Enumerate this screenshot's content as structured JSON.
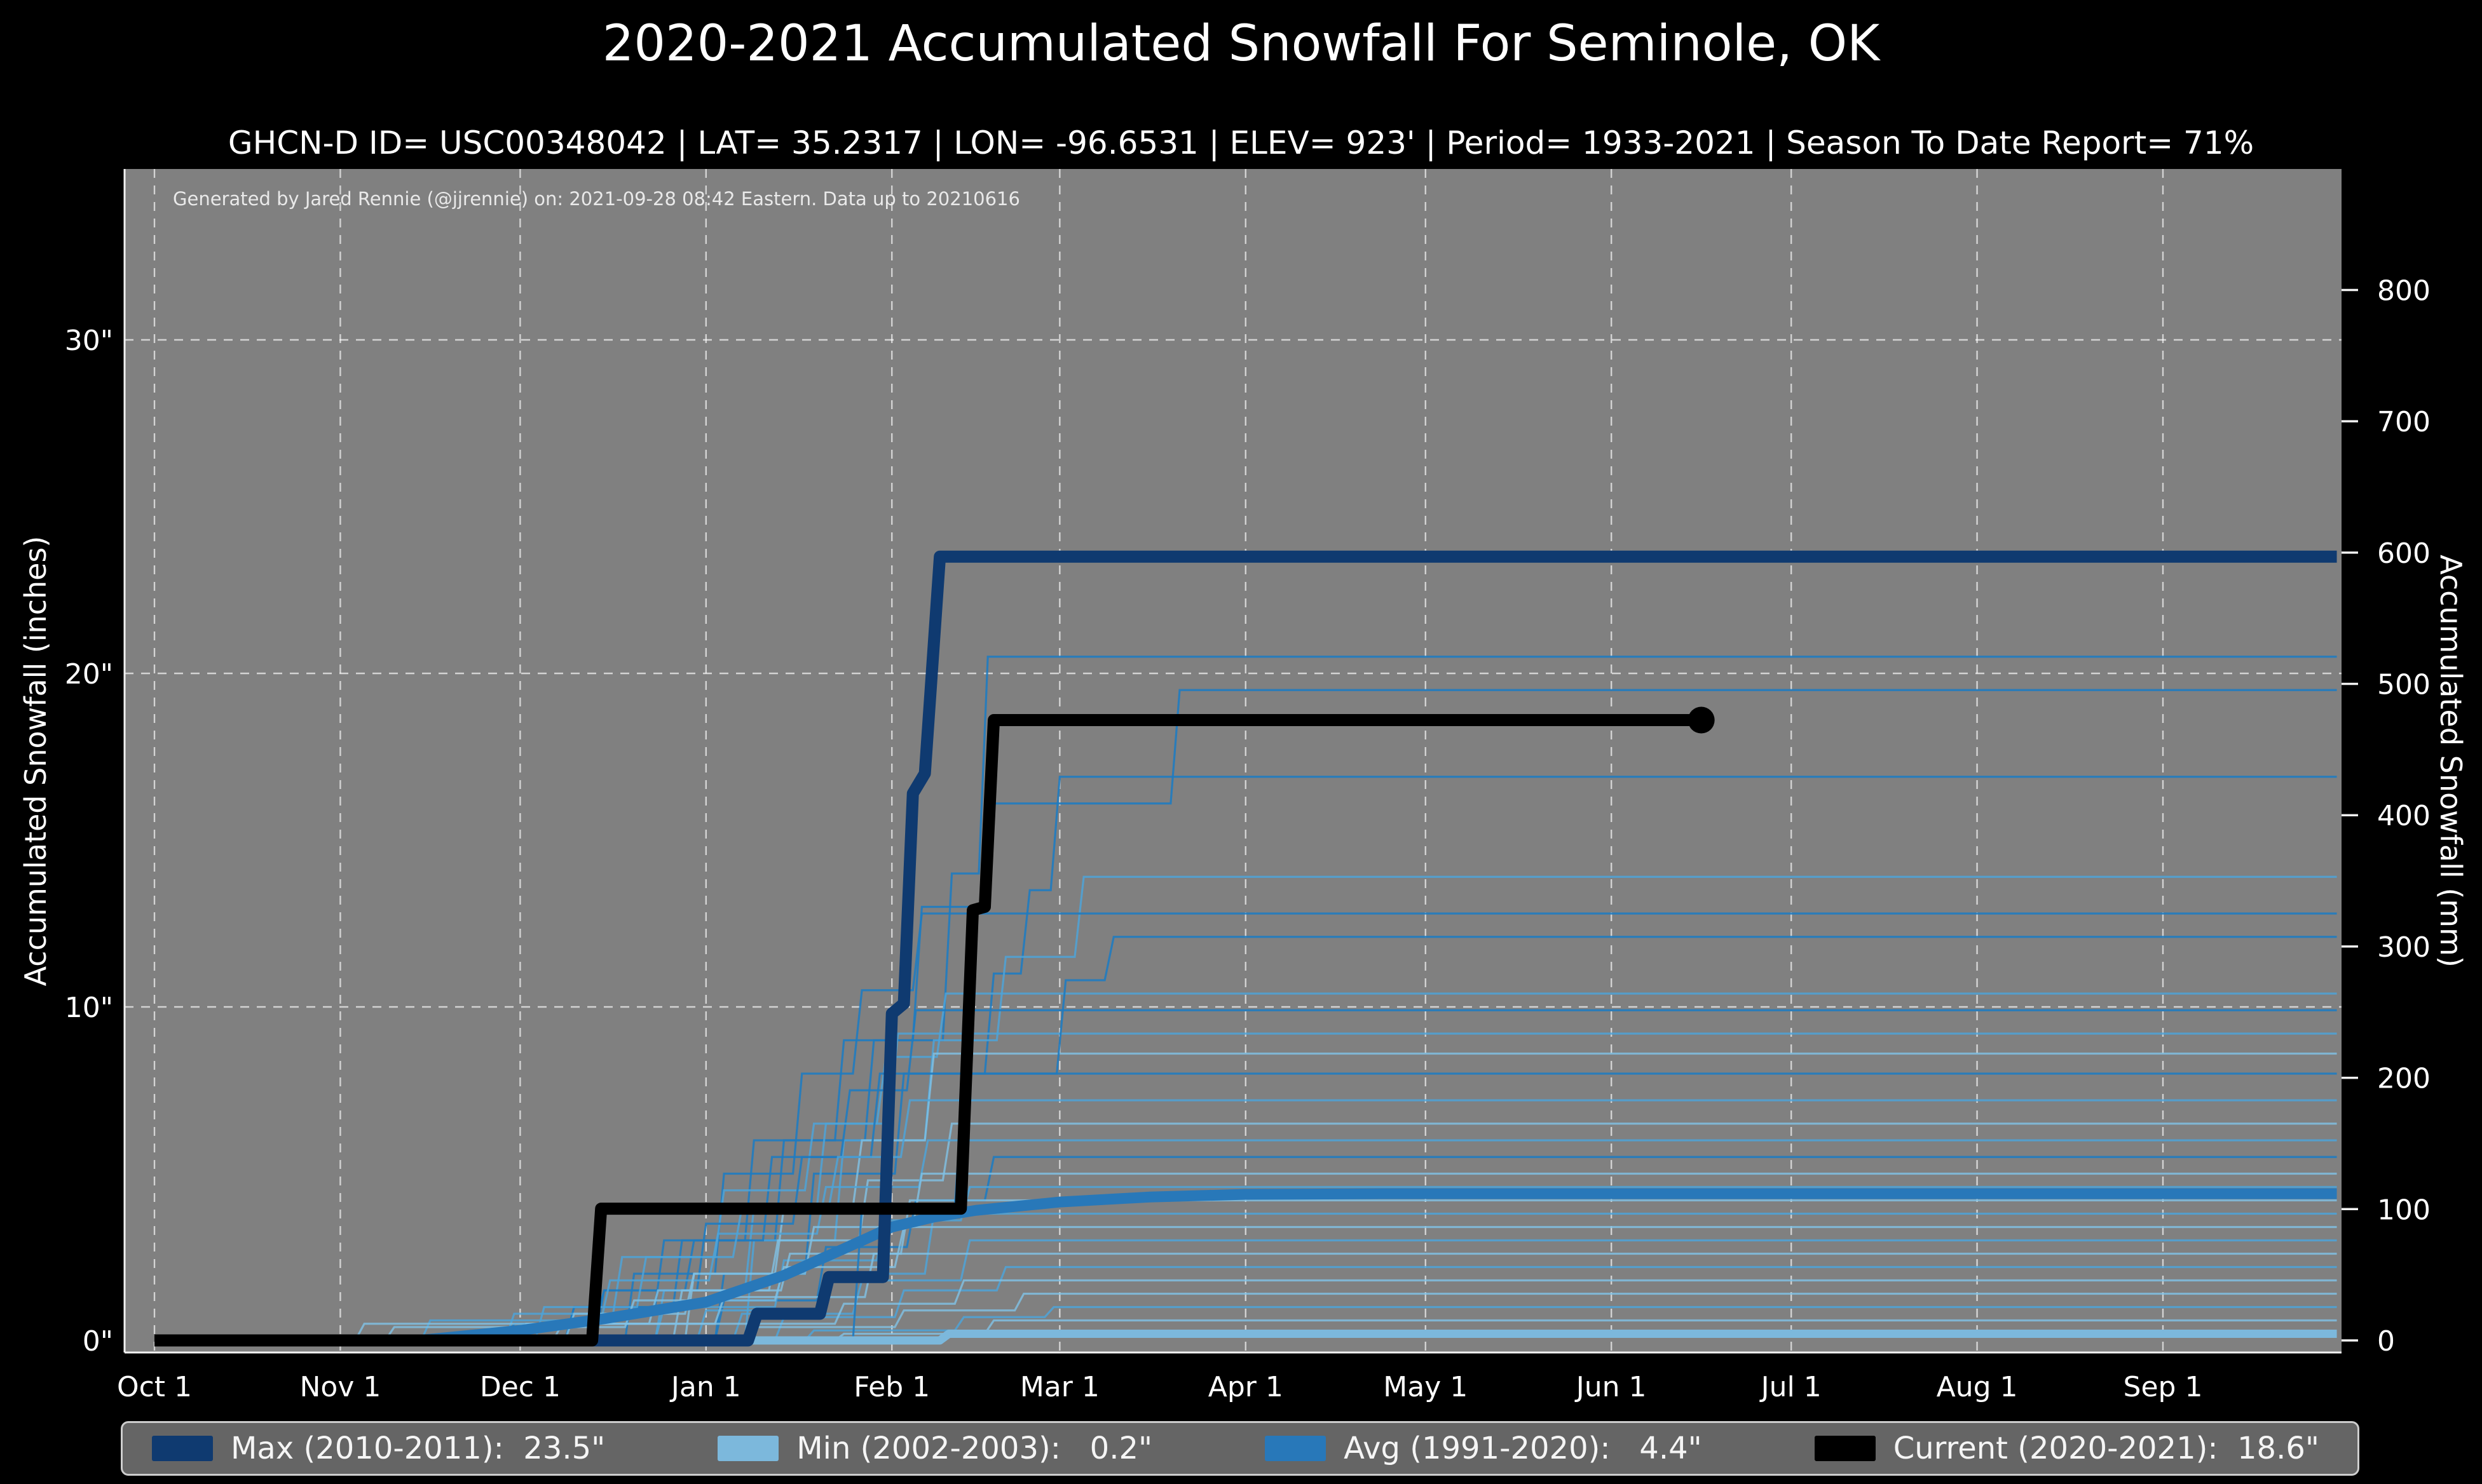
{
  "title": "2020-2021 Accumulated Snowfall For Seminole, OK",
  "subtitle": "GHCN-D ID= USC00348042 | LAT= 35.2317 | LON= -96.6531 | ELEV= 923' | Period= 1933-2021 | Season To Date Report= 71%",
  "annotation": "Generated by Jared Rennie (@jjrennie) on: 2021-09-28 08:42 Eastern. Data up to 20210616",
  "legend": [
    {
      "label": "Max (2010-2011):  23.5\"",
      "color": "#0f3a70"
    },
    {
      "label": "Min (2002-2003):   0.2\"",
      "color": "#7cb8dc"
    },
    {
      "label": "Avg (1991-2020):   4.4\"",
      "color": "#2878b9"
    },
    {
      "label": "Current (2020-2021):  18.6\"",
      "color": "#000000"
    }
  ],
  "chart_data": {
    "type": "line",
    "title": "2020-2021 Accumulated Snowfall For Seminole, OK",
    "plot_background": "#808080",
    "figure_background": "#000000",
    "gridline_color": "rgba(255,255,255,0.65)",
    "spine_color": "#f2f2f2",
    "x_axis": {
      "tick_labels": [
        "Oct 1",
        "Nov 1",
        "Dec 1",
        "Jan 1",
        "Feb 1",
        "Mar 1",
        "Apr 1",
        "May 1",
        "Jun 1",
        "Jul 1",
        "Aug 1",
        "Sep 1"
      ],
      "tick_days": [
        0,
        31,
        61,
        92,
        123,
        151,
        182,
        212,
        243,
        273,
        304,
        335
      ],
      "range_days": [
        0,
        364
      ],
      "grid": true
    },
    "y_left": {
      "label": "Accumulated Snowfall (inches)",
      "tick_labels": [
        "0\"",
        "10\"",
        "20\"",
        "30\""
      ],
      "tick_values": [
        0,
        10,
        20,
        30
      ],
      "grid_values": [
        10,
        20,
        30
      ],
      "range": [
        -0.36,
        35.1
      ],
      "units": "inches"
    },
    "y_right": {
      "label": "Accumulated Snowfall (mm)",
      "tick_labels": [
        "0",
        "100",
        "200",
        "300",
        "400",
        "500",
        "600",
        "700",
        "800"
      ],
      "tick_values": [
        0,
        100,
        200,
        300,
        400,
        500,
        600,
        700,
        800
      ],
      "units": "mm",
      "mm_per_inch": 25.4
    },
    "series": [
      {
        "id": "min",
        "name": "Min (2002-2003)",
        "season_total_in": 0.2,
        "color": "#7cb8dc",
        "points": [
          [
            0,
            0
          ],
          [
            131,
            0
          ],
          [
            132.5,
            0.2
          ],
          [
            364,
            0.2
          ]
        ]
      },
      {
        "id": "avg",
        "name": "Avg (1991-2020)",
        "season_total_in": 4.4,
        "color": "#2878b9",
        "points": [
          [
            0,
            0
          ],
          [
            44,
            0
          ],
          [
            61,
            0.3
          ],
          [
            75,
            0.65
          ],
          [
            92,
            1.15
          ],
          [
            105,
            1.95
          ],
          [
            115,
            2.75
          ],
          [
            123,
            3.4
          ],
          [
            130,
            3.7
          ],
          [
            137,
            3.9
          ],
          [
            151,
            4.15
          ],
          [
            166,
            4.3
          ],
          [
            182,
            4.38
          ],
          [
            205,
            4.4
          ],
          [
            364,
            4.4
          ]
        ]
      },
      {
        "id": "max",
        "name": "Max (2010-2011)",
        "season_total_in": 23.5,
        "color": "#0f3a70",
        "points": [
          [
            0,
            0
          ],
          [
            99,
            0
          ],
          [
            100.5,
            0.8
          ],
          [
            111,
            0.8
          ],
          [
            112.5,
            1.9
          ],
          [
            121.5,
            1.9
          ],
          [
            123,
            9.8
          ],
          [
            125,
            10.1
          ],
          [
            126.5,
            16.4
          ],
          [
            128.5,
            17.0
          ],
          [
            131,
            23.5
          ],
          [
            364,
            23.5
          ]
        ]
      },
      {
        "id": "current",
        "name": "Current (2020-2021)",
        "season_total_in": 18.6,
        "color": "#000000",
        "end_marker": true,
        "points": [
          [
            0,
            0
          ],
          [
            73,
            0
          ],
          [
            74.5,
            3.95
          ],
          [
            134.5,
            3.95
          ],
          [
            136.5,
            12.9
          ],
          [
            138.5,
            13.0
          ],
          [
            140,
            18.6
          ],
          [
            258,
            18.6
          ]
        ]
      }
    ],
    "historical_palette": [
      "#1f7bc0",
      "#4da3d8",
      "#7fc2e6"
    ],
    "historical_series": [
      {
        "c": 0,
        "p": [
          [
            60,
            0.5
          ],
          [
            75,
            1.5
          ],
          [
            90,
            3.0
          ],
          [
            105,
            6.0
          ],
          [
            120,
            9.0
          ],
          [
            133,
            14.0
          ],
          [
            139,
            20.5
          ]
        ]
      },
      {
        "c": 0,
        "p": [
          [
            70,
            1.0
          ],
          [
            85,
            3.0
          ],
          [
            100,
            6.0
          ],
          [
            115,
            9.0
          ],
          [
            128,
            13.0
          ],
          [
            140,
            16.1
          ],
          [
            171,
            19.5
          ]
        ]
      },
      {
        "c": 0,
        "p": [
          [
            95,
            2.0
          ],
          [
            110,
            5.0
          ],
          [
            125,
            8.0
          ],
          [
            140,
            11.0
          ],
          [
            146,
            13.5
          ],
          [
            151,
            16.9
          ]
        ]
      },
      {
        "c": 1,
        "p": [
          [
            100,
            3.0
          ],
          [
            115,
            6.0
          ],
          [
            130,
            9.0
          ],
          [
            142,
            11.5
          ],
          [
            155,
            13.9
          ]
        ]
      },
      {
        "c": 0,
        "p": [
          [
            80,
            2.0
          ],
          [
            95,
            5.0
          ],
          [
            108,
            8.0
          ],
          [
            118,
            10.5
          ],
          [
            128,
            12.8
          ]
        ]
      },
      {
        "c": 1,
        "p": [
          [
            85,
            1.5
          ],
          [
            100,
            4.0
          ],
          [
            112,
            6.5
          ],
          [
            122,
            8.5
          ],
          [
            132,
            10.4
          ]
        ]
      },
      {
        "c": 0,
        "p": [
          [
            70,
            1.0
          ],
          [
            88,
            3.0
          ],
          [
            103,
            5.5
          ],
          [
            116,
            7.5
          ],
          [
            127,
            9.9
          ]
        ]
      },
      {
        "c": 1,
        "p": [
          [
            60,
            0.8
          ],
          [
            78,
            2.5
          ],
          [
            95,
            4.5
          ],
          [
            110,
            6.5
          ],
          [
            124,
            9.2
          ]
        ]
      },
      {
        "c": 2,
        "p": [
          [
            90,
            2.0
          ],
          [
            105,
            4.0
          ],
          [
            118,
            6.0
          ],
          [
            130,
            8.6
          ]
        ]
      },
      {
        "c": 0,
        "p": [
          [
            75,
            1.5
          ],
          [
            92,
            3.5
          ],
          [
            108,
            5.5
          ],
          [
            121,
            8.0
          ]
        ]
      },
      {
        "c": 1,
        "p": [
          [
            65,
            1.0
          ],
          [
            82,
            2.5
          ],
          [
            98,
            4.0
          ],
          [
            114,
            5.5
          ],
          [
            126,
            7.2
          ]
        ]
      },
      {
        "c": 2,
        "p": [
          [
            88,
            1.5
          ],
          [
            104,
            3.0
          ],
          [
            119,
            4.8
          ],
          [
            133,
            6.5
          ]
        ]
      },
      {
        "c": 1,
        "p": [
          [
            46,
            0.6
          ],
          [
            76,
            1.8
          ],
          [
            94,
            3.2
          ],
          [
            112,
            4.6
          ],
          [
            129,
            6.0
          ]
        ]
      },
      {
        "c": 0,
        "p": [
          [
            95,
            1.2
          ],
          [
            112,
            2.8
          ],
          [
            127,
            4.2
          ],
          [
            140,
            5.5
          ]
        ]
      },
      {
        "c": 2,
        "p": [
          [
            70,
            0.8
          ],
          [
            90,
            2.0
          ],
          [
            110,
            3.4
          ],
          [
            128,
            5.0
          ]
        ]
      },
      {
        "c": 1,
        "p": [
          [
            85,
            1.0
          ],
          [
            105,
            2.4
          ],
          [
            122,
            3.6
          ],
          [
            136,
            4.6
          ]
        ]
      },
      {
        "c": 2,
        "p": [
          [
            62,
            0.5
          ],
          [
            84,
            1.5
          ],
          [
            106,
            2.6
          ],
          [
            126,
            4.2
          ]
        ]
      },
      {
        "c": 1,
        "p": [
          [
            92,
            0.9
          ],
          [
            112,
            2.0
          ],
          [
            130,
            3.8
          ]
        ]
      },
      {
        "c": 2,
        "p": [
          [
            40,
            0.4
          ],
          [
            80,
            1.2
          ],
          [
            105,
            2.2
          ],
          [
            125,
            3.4
          ]
        ]
      },
      {
        "c": 1,
        "p": [
          [
            98,
            0.8
          ],
          [
            118,
            1.8
          ],
          [
            136,
            3.0
          ]
        ]
      },
      {
        "c": 2,
        "p": [
          [
            68,
            0.5
          ],
          [
            95,
            1.3
          ],
          [
            120,
            2.6
          ]
        ]
      },
      {
        "c": 1,
        "p": [
          [
            105,
            0.7
          ],
          [
            125,
            1.5
          ],
          [
            142,
            2.2
          ]
        ]
      },
      {
        "c": 2,
        "p": [
          [
            35,
            0.5
          ],
          [
            115,
            1.1
          ],
          [
            135,
            1.8
          ]
        ]
      },
      {
        "c": 2,
        "p": [
          [
            100,
            0.4
          ],
          [
            125,
            0.9
          ],
          [
            145,
            1.4
          ]
        ]
      },
      {
        "c": 1,
        "p": [
          [
            110,
            0.3
          ],
          [
            135,
            0.7
          ],
          [
            150,
            1.0
          ]
        ]
      },
      {
        "c": 2,
        "p": [
          [
            115,
            0.2
          ],
          [
            140,
            0.6
          ]
        ]
      },
      {
        "c": 0,
        "p": [
          [
            118,
            4.0
          ],
          [
            135,
            8.0
          ],
          [
            152,
            10.8
          ],
          [
            160,
            12.1
          ]
        ]
      }
    ]
  }
}
